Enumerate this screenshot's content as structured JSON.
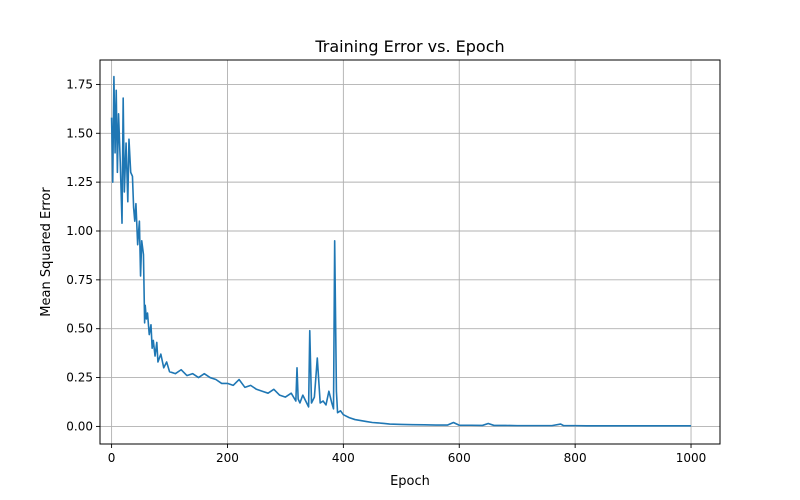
{
  "chart_data": {
    "type": "line",
    "title": "Training Error vs. Epoch",
    "xlabel": "Epoch",
    "ylabel": "Mean Squared Error",
    "xlim": [
      -20,
      1050
    ],
    "ylim": [
      -0.09,
      1.875
    ],
    "xticks": [
      0,
      200,
      400,
      600,
      800,
      1000
    ],
    "yticks": [
      0.0,
      0.25,
      0.5,
      0.75,
      1.0,
      1.25,
      1.5,
      1.75
    ],
    "xtick_labels": [
      "0",
      "200",
      "400",
      "600",
      "800",
      "1000"
    ],
    "ytick_labels": [
      "0.00",
      "0.25",
      "0.50",
      "0.75",
      "1.00",
      "1.25",
      "1.50",
      "1.75"
    ],
    "grid": true,
    "series": [
      {
        "color": "#1f77b4",
        "x": [
          0,
          2,
          4,
          6,
          8,
          10,
          12,
          15,
          18,
          20,
          22,
          25,
          28,
          30,
          33,
          36,
          38,
          40,
          42,
          45,
          48,
          50,
          52,
          55,
          57,
          58,
          60,
          62,
          65,
          68,
          70,
          72,
          75,
          78,
          80,
          85,
          90,
          95,
          100,
          110,
          120,
          130,
          140,
          150,
          160,
          170,
          180,
          190,
          200,
          210,
          220,
          230,
          240,
          250,
          260,
          270,
          280,
          290,
          300,
          310,
          318,
          320,
          322,
          325,
          330,
          335,
          340,
          342,
          345,
          350,
          355,
          360,
          365,
          370,
          375,
          380,
          383,
          385,
          388,
          390,
          395,
          400,
          410,
          420,
          430,
          440,
          450,
          460,
          470,
          480,
          500,
          520,
          540,
          560,
          580,
          590,
          600,
          620,
          640,
          650,
          660,
          680,
          700,
          720,
          740,
          760,
          775,
          780,
          800,
          820,
          840,
          860,
          880,
          900,
          920,
          940,
          960,
          980,
          1000
        ],
        "y": [
          1.58,
          1.25,
          1.79,
          1.4,
          1.72,
          1.3,
          1.6,
          1.35,
          1.04,
          1.68,
          1.2,
          1.45,
          1.15,
          1.47,
          1.3,
          1.28,
          1.12,
          1.05,
          1.14,
          0.93,
          1.05,
          0.77,
          0.95,
          0.88,
          0.53,
          0.62,
          0.55,
          0.58,
          0.47,
          0.52,
          0.4,
          0.44,
          0.36,
          0.43,
          0.33,
          0.37,
          0.3,
          0.33,
          0.28,
          0.27,
          0.29,
          0.26,
          0.27,
          0.25,
          0.27,
          0.25,
          0.24,
          0.22,
          0.22,
          0.21,
          0.24,
          0.2,
          0.21,
          0.19,
          0.18,
          0.17,
          0.19,
          0.16,
          0.15,
          0.17,
          0.13,
          0.3,
          0.14,
          0.12,
          0.16,
          0.13,
          0.1,
          0.49,
          0.12,
          0.15,
          0.35,
          0.12,
          0.13,
          0.11,
          0.18,
          0.12,
          0.09,
          0.95,
          0.18,
          0.07,
          0.08,
          0.06,
          0.045,
          0.035,
          0.03,
          0.025,
          0.02,
          0.018,
          0.015,
          0.012,
          0.01,
          0.009,
          0.008,
          0.007,
          0.007,
          0.02,
          0.006,
          0.006,
          0.005,
          0.015,
          0.005,
          0.005,
          0.004,
          0.004,
          0.004,
          0.004,
          0.012,
          0.004,
          0.004,
          0.003,
          0.003,
          0.003,
          0.003,
          0.003,
          0.003,
          0.003,
          0.003,
          0.003,
          0.003
        ]
      }
    ]
  }
}
